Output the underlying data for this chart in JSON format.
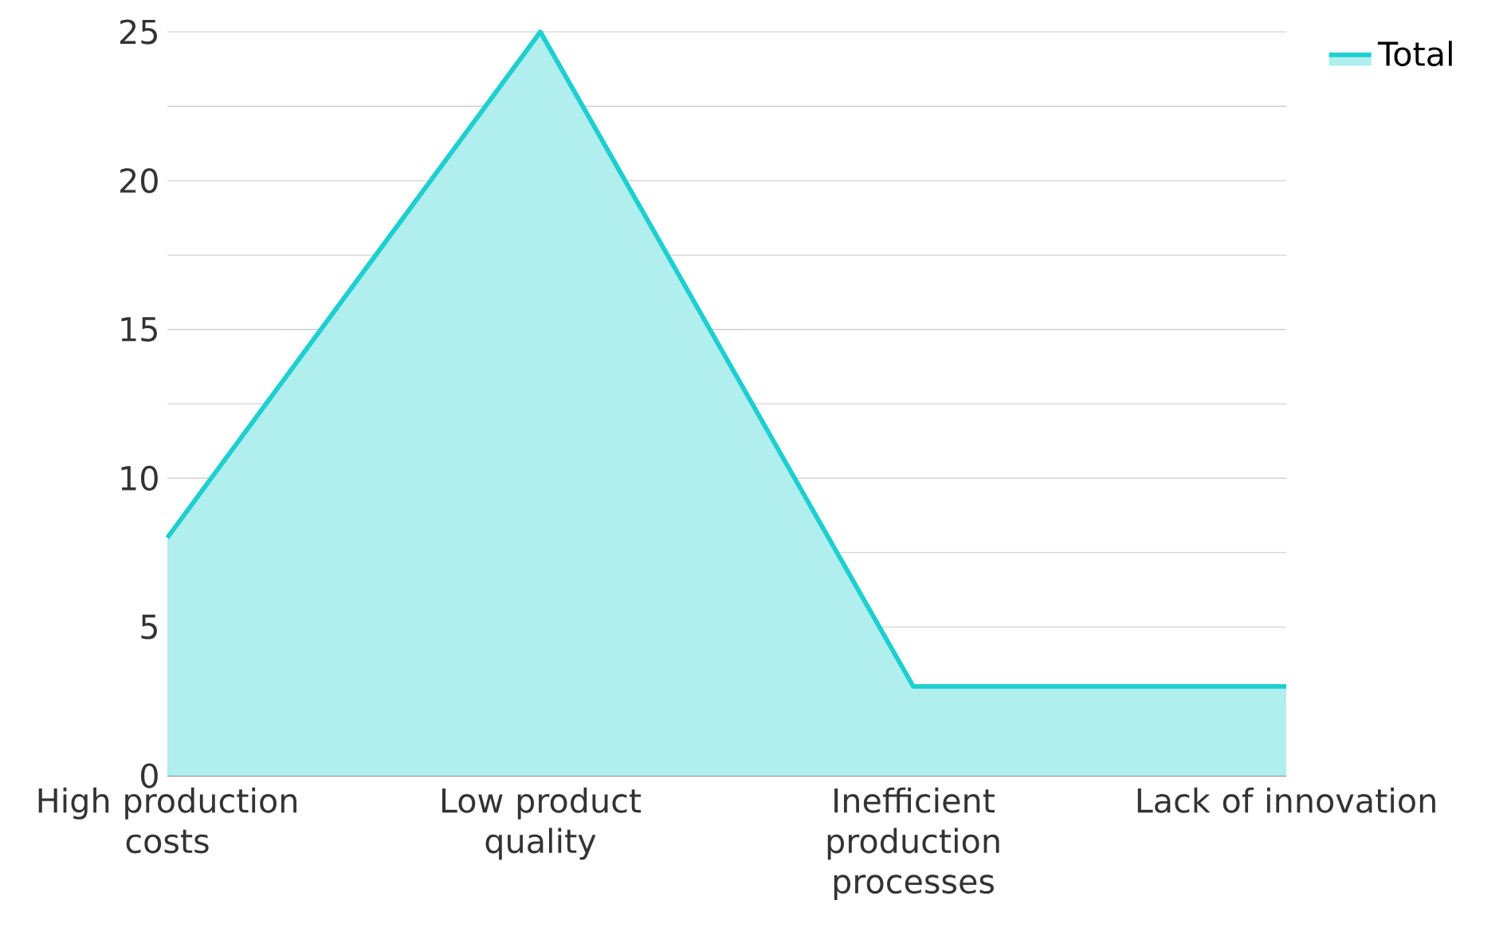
{
  "chart_data": {
    "type": "area",
    "categories": [
      "High production costs",
      "Low product quality",
      "Inefficient production processes",
      "Lack of innovation"
    ],
    "series": [
      {
        "name": "Total",
        "color": "#1fcfcf",
        "values": [
          8,
          25,
          3,
          3
        ]
      }
    ],
    "ylim": [
      0,
      25
    ],
    "yticks": [
      0,
      {
        "value": 2.5,
        "label": null
      },
      5,
      {
        "value": 7.5,
        "label": null
      },
      10,
      {
        "value": 12.5,
        "label": null
      },
      15,
      {
        "value": 17.5,
        "label": null
      },
      20,
      {
        "value": 22.5,
        "label": null
      },
      25
    ],
    "grid": "y",
    "legend": "top right"
  }
}
